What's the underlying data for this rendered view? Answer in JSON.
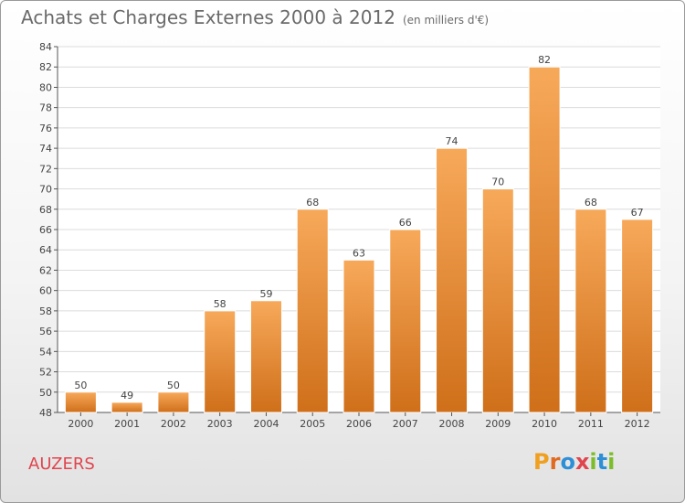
{
  "title": "Achats et Charges Externes 2000 à 2012",
  "subtitle": "(en milliers d'€)",
  "commune": "AUZERS",
  "brand": "Proxiti",
  "colors": {
    "bar_light": "#f7a95a",
    "bar_dark": "#cf6f1a",
    "commune": "#e0454e",
    "text": "#6a6a6a"
  },
  "chart_data": {
    "type": "bar",
    "title": "Achats et Charges Externes 2000 à 2012",
    "subtitle": "(en milliers d'€)",
    "categories": [
      "2000",
      "2001",
      "2002",
      "2003",
      "2004",
      "2005",
      "2006",
      "2007",
      "2008",
      "2009",
      "2010",
      "2011",
      "2012"
    ],
    "values": [
      50,
      49,
      50,
      58,
      59,
      68,
      63,
      66,
      74,
      70,
      82,
      68,
      67
    ],
    "ylim": [
      48,
      84
    ],
    "ytick_step": 2,
    "grid": true,
    "legend": "none"
  }
}
